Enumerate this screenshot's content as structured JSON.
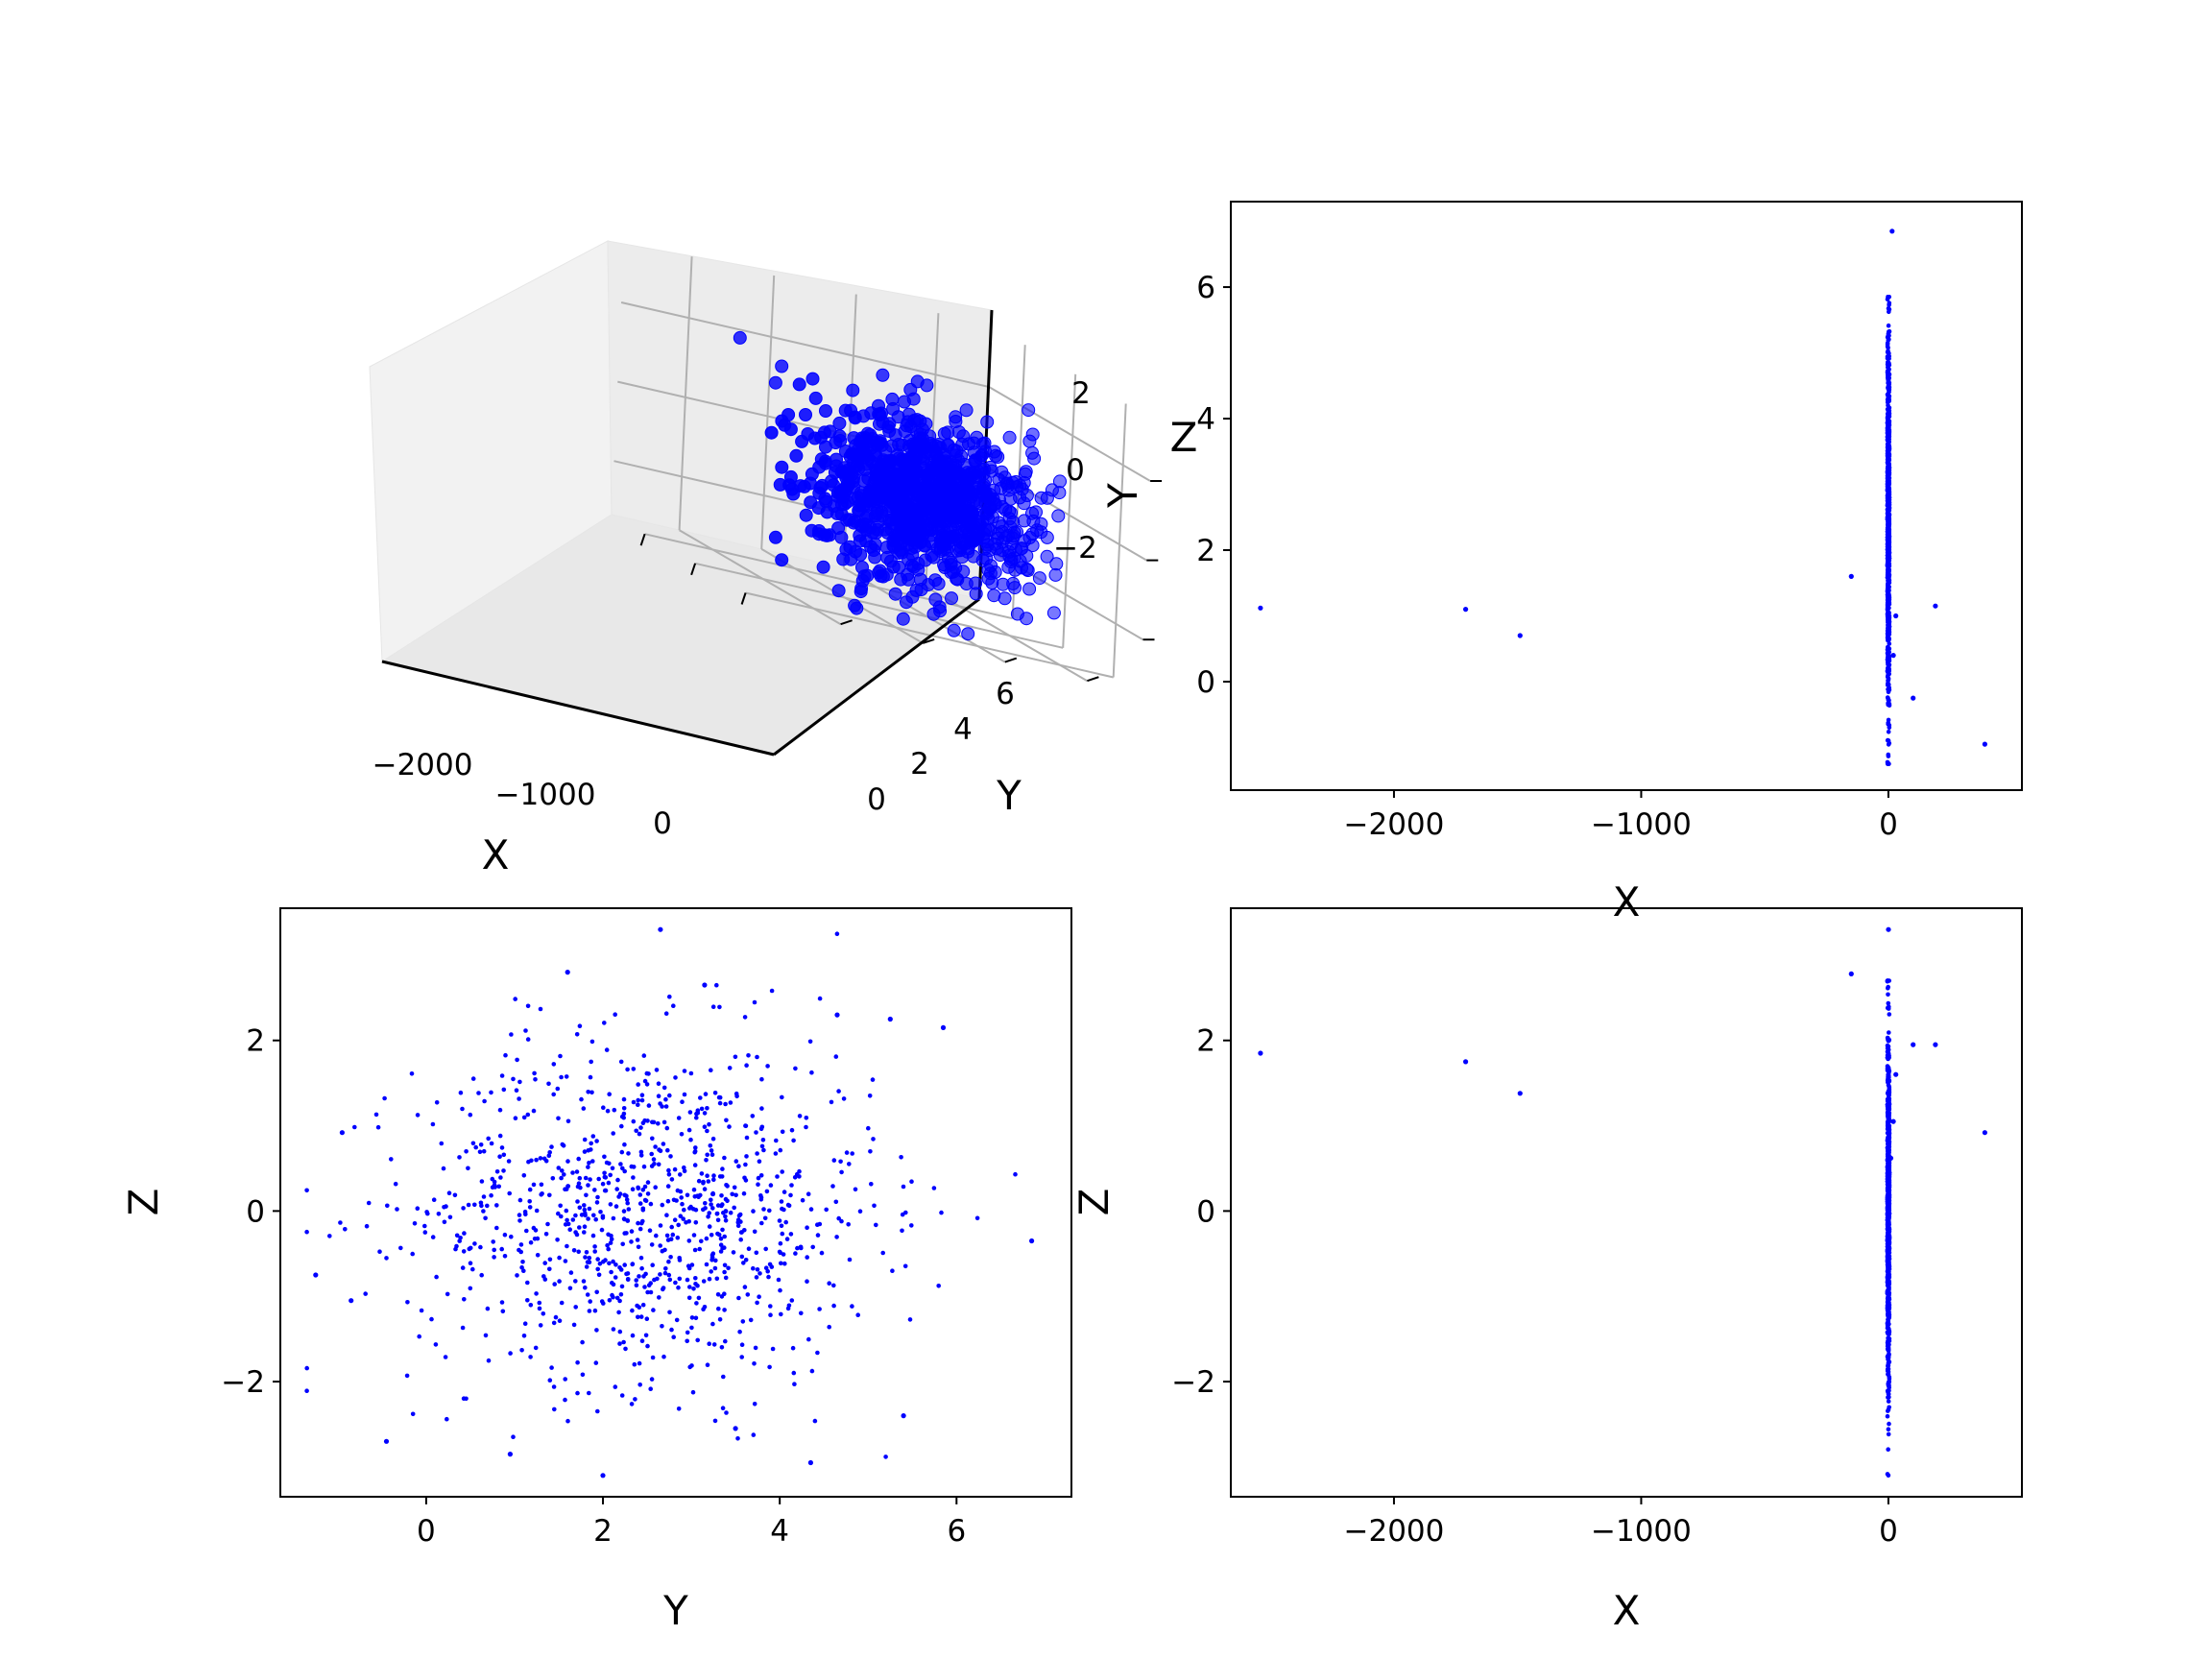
{
  "colors": {
    "marker": "#0000ff",
    "axes": "#000000",
    "pane": "#f2f2f2",
    "grid": "#b0b0b0"
  },
  "chart_data": [
    {
      "id": "3d",
      "type": "scatter",
      "projection": "3d",
      "xlabel": "X",
      "ylabel": "Y",
      "zlabel": "Z",
      "x_ticks": [
        "−2000",
        "−1000",
        "0"
      ],
      "y_ticks": [
        "0",
        "2",
        "4",
        "6"
      ],
      "z_ticks": [
        "2",
        "0",
        "−2"
      ],
      "outliers": [
        {
          "x": -2540,
          "y": 1.1,
          "z": 1.85
        },
        {
          "x": -1710,
          "y": 1.1,
          "z": 1.75
        },
        {
          "x": -1490,
          "y": 0.7,
          "z": 1.4
        },
        {
          "x": -150,
          "y": 1.6,
          "z": 2.8
        },
        {
          "x": 190,
          "y": 1.15,
          "z": 1.95
        },
        {
          "x": 100,
          "y": -0.3,
          "z": 1.95
        },
        {
          "x": 390,
          "y": -0.95,
          "z": 0.92
        }
      ],
      "grid": true,
      "legend": "none"
    },
    {
      "id": "xy",
      "type": "scatter",
      "xlabel": "X",
      "ylabel": "Y",
      "xlim": [
        -2660,
        540
      ],
      "ylim": [
        -1.65,
        7.3
      ],
      "xticks": [
        -2000,
        -1000,
        0
      ],
      "xtick_labels": [
        "−2000",
        "−1000",
        "0"
      ],
      "yticks": [
        0,
        2,
        4,
        6
      ],
      "ytick_labels": [
        "0",
        "2",
        "4",
        "6"
      ],
      "outliers": [
        {
          "x": -2540,
          "y": 1.12
        },
        {
          "x": -1710,
          "y": 1.1
        },
        {
          "x": -1490,
          "y": 0.7
        },
        {
          "x": -150,
          "y": 1.6
        },
        {
          "x": 190,
          "y": 1.15
        },
        {
          "x": 100,
          "y": -0.25
        },
        {
          "x": 390,
          "y": -0.95
        },
        {
          "x": 20,
          "y": 0.4
        },
        {
          "x": 30,
          "y": 1.0
        },
        {
          "x": 15,
          "y": 6.85
        }
      ],
      "cluster": {
        "x_center": 0,
        "x_spread": 8,
        "y_mean": 2.5,
        "y_sd": 1.35,
        "y_min": -1.25,
        "y_max": 5.85,
        "n": 1000
      },
      "grid": false,
      "legend": "none"
    },
    {
      "id": "yz",
      "type": "scatter",
      "xlabel": "Y",
      "ylabel": "Z",
      "xlim": [
        -1.65,
        7.3
      ],
      "ylim": [
        -3.35,
        3.55
      ],
      "xticks": [
        0,
        2,
        4,
        6
      ],
      "xtick_labels": [
        "0",
        "2",
        "4",
        "6"
      ],
      "yticks": [
        -2,
        0,
        2
      ],
      "ytick_labels": [
        "−2",
        "0",
        "2"
      ],
      "outliers": [
        {
          "x": 2.65,
          "y": 3.3
        },
        {
          "x": 1.6,
          "y": 2.8
        },
        {
          "x": 3.15,
          "y": 2.65
        },
        {
          "x": 5.85,
          "y": 2.15
        },
        {
          "x": 4.65,
          "y": 2.3
        },
        {
          "x": -0.95,
          "y": 0.92
        },
        {
          "x": -1.25,
          "y": -0.75
        },
        {
          "x": -0.45,
          "y": -2.7
        },
        {
          "x": 6.85,
          "y": -0.35
        },
        {
          "x": 5.4,
          "y": -2.4
        },
        {
          "x": 4.35,
          "y": -2.95
        },
        {
          "x": 2.0,
          "y": -3.1
        },
        {
          "x": 0.95,
          "y": -2.85
        },
        {
          "x": 3.5,
          "y": -2.55
        },
        {
          "x": -0.85,
          "y": -1.05
        },
        {
          "x": 5.25,
          "y": 2.25
        }
      ],
      "cluster": {
        "x_mean": 2.5,
        "x_sd": 1.3,
        "y_mean": 0,
        "y_sd": 1.0,
        "n": 1000
      },
      "grid": false,
      "legend": "none"
    },
    {
      "id": "xz",
      "type": "scatter",
      "xlabel": "X",
      "ylabel": "Z",
      "xlim": [
        -2660,
        540
      ],
      "ylim": [
        -3.35,
        3.55
      ],
      "xticks": [
        -2000,
        -1000,
        0
      ],
      "xtick_labels": [
        "−2000",
        "−1000",
        "0"
      ],
      "yticks": [
        -2,
        0,
        2
      ],
      "ytick_labels": [
        "−2",
        "0",
        "2"
      ],
      "outliers": [
        {
          "x": -2540,
          "y": 1.85
        },
        {
          "x": -1710,
          "y": 1.75
        },
        {
          "x": -1490,
          "y": 1.38
        },
        {
          "x": -150,
          "y": 2.78
        },
        {
          "x": 190,
          "y": 1.95
        },
        {
          "x": 100,
          "y": 1.95
        },
        {
          "x": 390,
          "y": 0.92
        },
        {
          "x": 30,
          "y": 1.6
        },
        {
          "x": 20,
          "y": 1.05
        },
        {
          "x": 10,
          "y": 0.62
        },
        {
          "x": 0,
          "y": 3.3
        }
      ],
      "cluster": {
        "x_center": 0,
        "x_spread": 8,
        "y_mean": 0,
        "y_sd": 1.0,
        "y_min": -3.1,
        "y_max": 2.7,
        "n": 1000
      },
      "grid": false,
      "legend": "none"
    }
  ]
}
